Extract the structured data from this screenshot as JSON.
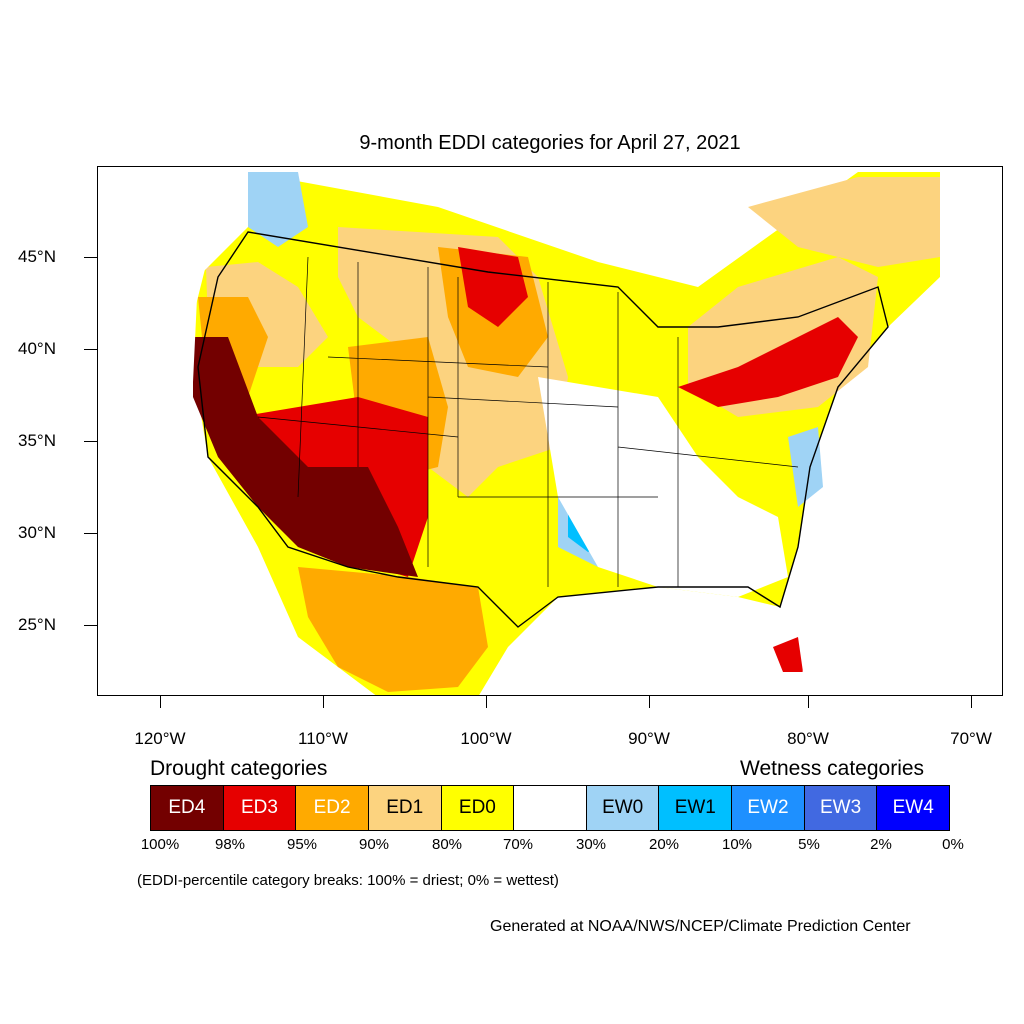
{
  "title": "9-month EDDI categories for April 27, 2021",
  "lat_labels": [
    "45°N",
    "40°N",
    "35°N",
    "30°N",
    "25°N"
  ],
  "lon_labels": [
    "120°W",
    "110°W",
    "100°W",
    "90°W",
    "80°W",
    "70°W"
  ],
  "legend": {
    "drought_title": "Drought categories",
    "wetness_title": "Wetness categories",
    "categories": [
      {
        "label": "ED4",
        "color": "#730000"
      },
      {
        "label": "ED3",
        "color": "#e60000"
      },
      {
        "label": "ED2",
        "color": "#ffaa00"
      },
      {
        "label": "ED1",
        "color": "#fcd37f"
      },
      {
        "label": "ED0",
        "color": "#ffff00"
      },
      {
        "label": "",
        "color": "#ffffff"
      },
      {
        "label": "EW0",
        "color": "#9fd3f5"
      },
      {
        "label": "EW1",
        "color": "#00bfff"
      },
      {
        "label": "EW2",
        "color": "#1e90ff"
      },
      {
        "label": "EW3",
        "color": "#4169e1"
      },
      {
        "label": "EW4",
        "color": "#0000ff"
      }
    ],
    "percentiles": [
      "100%",
      "98%",
      "95%",
      "90%",
      "80%",
      "70%",
      "30%",
      "20%",
      "10%",
      "5%",
      "2%",
      "0%"
    ]
  },
  "note": "(EDDI-percentile category breaks: 100% = driest; 0% = wettest)",
  "credit": "Generated at NOAA/NWS/NCEP/Climate Prediction Center"
}
